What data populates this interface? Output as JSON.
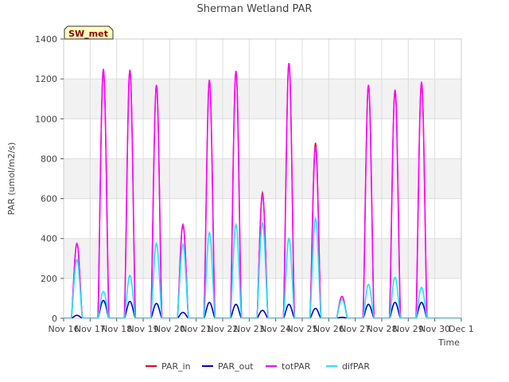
{
  "chart_data": {
    "type": "line",
    "title": "Sherman Wetland PAR",
    "xlabel": "Time",
    "ylabel": "PAR (umol/m2/s)",
    "ylim": [
      0,
      1400
    ],
    "xlim": [
      0,
      15
    ],
    "yticks": [
      0,
      200,
      400,
      600,
      800,
      1000,
      1200,
      1400
    ],
    "xticks": [
      "Nov 16",
      "Nov 17",
      "Nov 18",
      "Nov 19",
      "Nov 20",
      "Nov 21",
      "Nov 22",
      "Nov 23",
      "Nov 24",
      "Nov 25",
      "Nov 26",
      "Nov 27",
      "Nov 28",
      "Nov 29",
      "Nov 30",
      "Dec 1"
    ],
    "grid": true,
    "legend_position": "bottom",
    "site_label": "SW_met",
    "colors": {
      "PAR_in": "#e8001c",
      "PAR_out": "#0000d0",
      "totPAR": "#ff00ff",
      "difPAR": "#22e5f5",
      "band": "#f2f2f2",
      "site_label_bg": "#ffffc0",
      "site_label_text": "#8b0000"
    },
    "day_peaks": {
      "x": [
        "Nov 16",
        "Nov 17",
        "Nov 18",
        "Nov 19",
        "Nov 20",
        "Nov 21",
        "Nov 22",
        "Nov 23",
        "Nov 24",
        "Nov 25",
        "Nov 26",
        "Nov 27",
        "Nov 28",
        "Nov 29",
        "Nov 30"
      ],
      "PAR_in": [
        375,
        1250,
        1245,
        1170,
        470,
        1195,
        1240,
        630,
        1280,
        880,
        110,
        1170,
        1145,
        1185,
        0
      ],
      "PAR_out": [
        15,
        90,
        85,
        75,
        30,
        80,
        70,
        40,
        70,
        50,
        5,
        70,
        80,
        80,
        0
      ],
      "totPAR": [
        375,
        1250,
        1245,
        1170,
        470,
        1195,
        1240,
        620,
        1280,
        860,
        110,
        1170,
        1145,
        1185,
        0
      ],
      "difPAR": [
        295,
        135,
        215,
        375,
        370,
        430,
        470,
        480,
        400,
        500,
        95,
        170,
        205,
        155,
        0
      ]
    },
    "series": [
      {
        "name": "PAR_in",
        "color": "#e8001c"
      },
      {
        "name": "PAR_out",
        "color": "#0000d0"
      },
      {
        "name": "totPAR",
        "color": "#ff00ff"
      },
      {
        "name": "difPAR",
        "color": "#22e5f5"
      }
    ]
  }
}
